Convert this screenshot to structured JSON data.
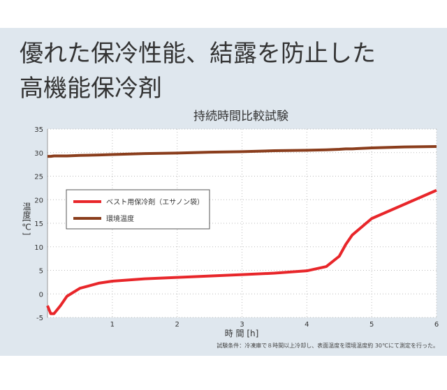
{
  "header": {
    "lines": [
      "優れた保冷性能、結露を防止した",
      "高機能保冷剤"
    ]
  },
  "chart_data": {
    "type": "line",
    "title": "持続時間比較試験",
    "x_label": "時 間 [h]",
    "y_label": "温度[℃]",
    "note": "試験条件：冷凍庫で８時間以上冷却し、表面温度を環境温度約 30℃にて測定を行った。",
    "x": [
      0,
      0.05,
      0.1,
      0.2,
      0.3,
      0.5,
      0.8,
      1,
      1.5,
      2,
      2.5,
      3,
      3.5,
      4,
      4.3,
      4.5,
      4.6,
      4.7,
      5,
      5.5,
      6
    ],
    "series": [
      {
        "name": "ベスト用保冷剤（エサノン袋）",
        "color": "#e8262a",
        "values": [
          -2.5,
          -4.2,
          -4.2,
          -2.5,
          -0.5,
          1.2,
          2.3,
          2.7,
          3.2,
          3.5,
          3.8,
          4.1,
          4.4,
          4.9,
          5.8,
          8,
          10.5,
          12.5,
          16,
          19,
          22
        ]
      },
      {
        "name": "環境温度",
        "color": "#8a3d1c",
        "values": [
          29.2,
          29.2,
          29.3,
          29.3,
          29.3,
          29.4,
          29.5,
          29.6,
          29.8,
          29.9,
          30.1,
          30.2,
          30.4,
          30.5,
          30.6,
          30.7,
          30.8,
          30.8,
          31,
          31.2,
          31.3
        ]
      }
    ],
    "xlim": [
      0,
      6
    ],
    "xticks": [
      1,
      2,
      3,
      4,
      5,
      6
    ],
    "ylim": [
      -5,
      35
    ],
    "yticks": [
      -5,
      0,
      5,
      10,
      15,
      20,
      25,
      30,
      35
    ],
    "grid": true
  }
}
